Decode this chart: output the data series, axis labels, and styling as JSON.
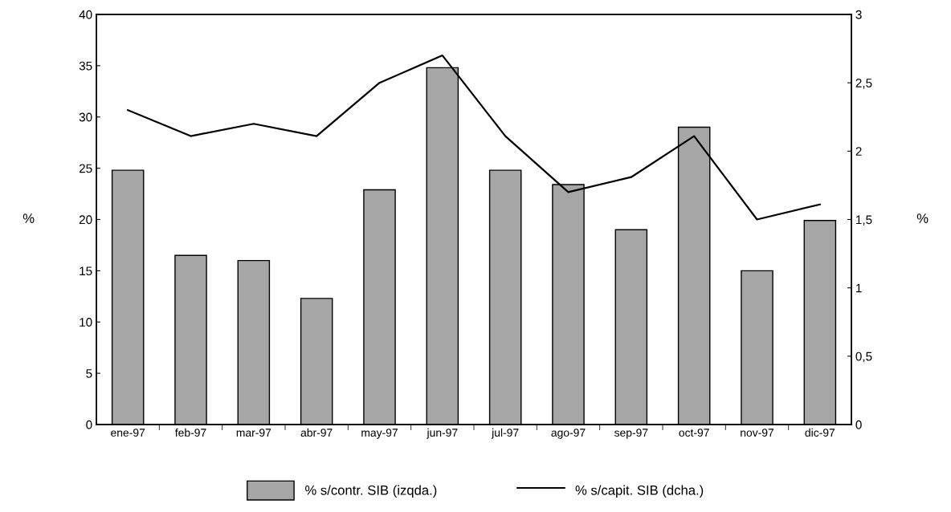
{
  "chart_data": {
    "type": "bar",
    "ylabel": "%",
    "y2label": "%",
    "categories": [
      "ene-97",
      "feb-97",
      "mar-97",
      "abr-97",
      "may-97",
      "jun-97",
      "jul-97",
      "ago-97",
      "sep-97",
      "oct-97",
      "nov-97",
      "dic-97"
    ],
    "series": [
      {
        "name": "% s/contr. SIB (izqda.)",
        "color": "#a6a6a6",
        "values": [
          24.8,
          16.5,
          16.0,
          12.3,
          22.9,
          34.8,
          24.8,
          23.4,
          19.0,
          29.0,
          15.0,
          19.9
        ]
      },
      {
        "name": "% s/capit. SIB (dcha.)",
        "type": "line",
        "axis": "y2",
        "color": "#000000",
        "values": [
          2.3,
          2.11,
          2.2,
          2.11,
          2.5,
          2.7,
          2.11,
          1.7,
          1.81,
          2.11,
          1.5,
          1.61
        ]
      }
    ],
    "ylim": [
      0,
      40
    ],
    "yticks": [
      0,
      5,
      10,
      15,
      20,
      25,
      30,
      35,
      40
    ],
    "y2lim": [
      0,
      3
    ],
    "y2ticks": [
      0,
      {
        "value": 0.5,
        "label": "0,5"
      },
      1,
      {
        "value": 1.5,
        "label": "1,5"
      },
      2,
      {
        "value": 2.5,
        "label": "2,5"
      },
      3
    ],
    "grid": false,
    "legend": "bottom",
    "marker": "none",
    "line_style": "solid"
  }
}
